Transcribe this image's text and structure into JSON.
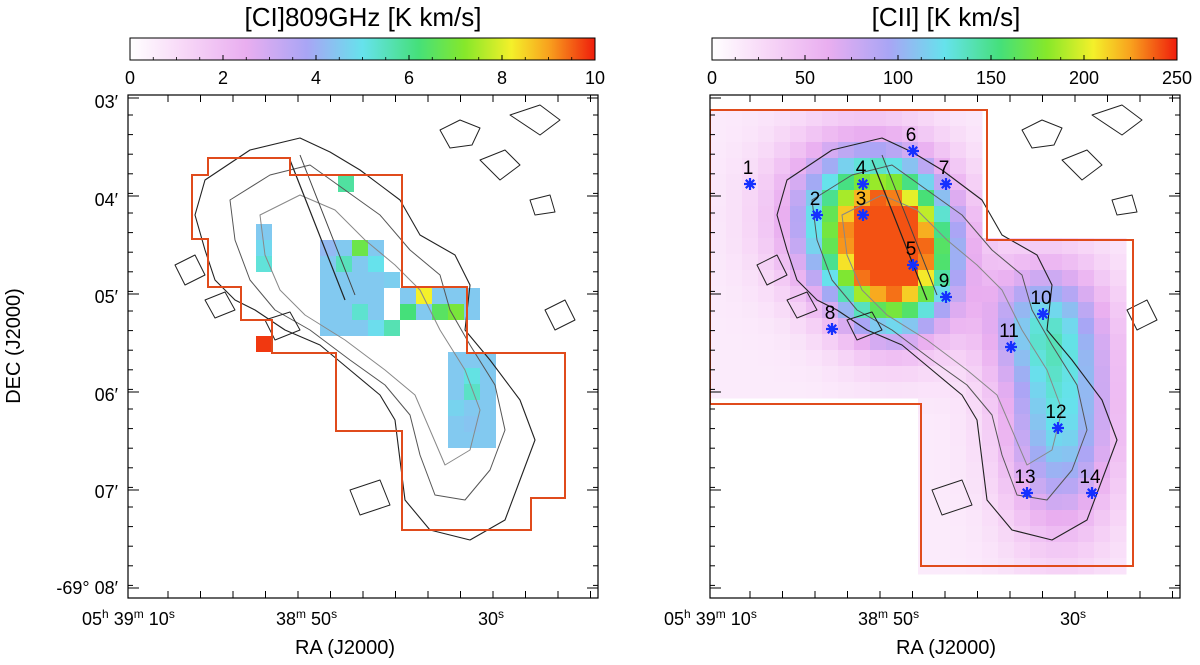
{
  "chart_data": [
    {
      "type": "heatmap",
      "title": "[CI]809GHz [K km/s]",
      "colorbar": {
        "min": 0,
        "max": 10,
        "ticks": [
          "0",
          "2",
          "4",
          "6",
          "8",
          "10"
        ]
      },
      "xlabel": "RA (J2000)",
      "ylabel": "DEC (J2000)",
      "x_ticks": [
        {
          "label": "05h 39m 10s",
          "h": "05",
          "m": "39",
          "s": "10"
        },
        {
          "label": "38m 50s",
          "m": "38",
          "s": "50"
        },
        {
          "label": "30s",
          "s": "30"
        }
      ],
      "y_ticks": [
        {
          "label": "03′",
          "d": "",
          "m": "03"
        },
        {
          "label": "04′",
          "d": "",
          "m": "04"
        },
        {
          "label": "05′",
          "d": "",
          "m": "05"
        },
        {
          "label": "06′",
          "d": "",
          "m": "06"
        },
        {
          "label": "07′",
          "d": "",
          "m": "07"
        },
        {
          "label": "-69° 08′",
          "d": "-69",
          "m": "08"
        }
      ],
      "pixel_values": [
        {
          "value": 5.8
        },
        {
          "value": 4.5
        },
        {
          "value": 4.8
        },
        {
          "value": 5.2
        },
        {
          "value": 4.2
        },
        {
          "value": 5.5
        },
        {
          "value": 6.8
        },
        {
          "value": 5.0
        },
        {
          "value": 4.6
        },
        {
          "value": 8.2
        },
        {
          "value": 6.2
        },
        {
          "value": 6.5
        },
        {
          "value": 7.0
        },
        {
          "value": 5.3
        },
        {
          "value": 4.9
        },
        {
          "value": 5.6
        },
        {
          "value": 9.8
        },
        {
          "value": 5.1
        },
        {
          "value": 5.4
        },
        {
          "value": 4.7
        },
        {
          "value": 4.4
        }
      ]
    },
    {
      "type": "heatmap",
      "title": "[CII] [K km/s]",
      "colorbar": {
        "min": 0,
        "max": 250,
        "ticks": [
          "0",
          "50",
          "100",
          "150",
          "200",
          "250"
        ]
      },
      "xlabel": "RA (J2000)",
      "ylabel": "",
      "x_ticks": [
        {
          "label": "05h 39m 10s",
          "h": "05",
          "m": "39",
          "s": "10"
        },
        {
          "label": "38m 50s",
          "m": "38",
          "s": "50"
        },
        {
          "label": "30s",
          "s": "30"
        }
      ],
      "peak_value": 240,
      "positions": [
        "1",
        "2",
        "3",
        "4",
        "5",
        "6",
        "7",
        "8",
        "9",
        "10",
        "11",
        "12",
        "13",
        "14"
      ]
    }
  ]
}
